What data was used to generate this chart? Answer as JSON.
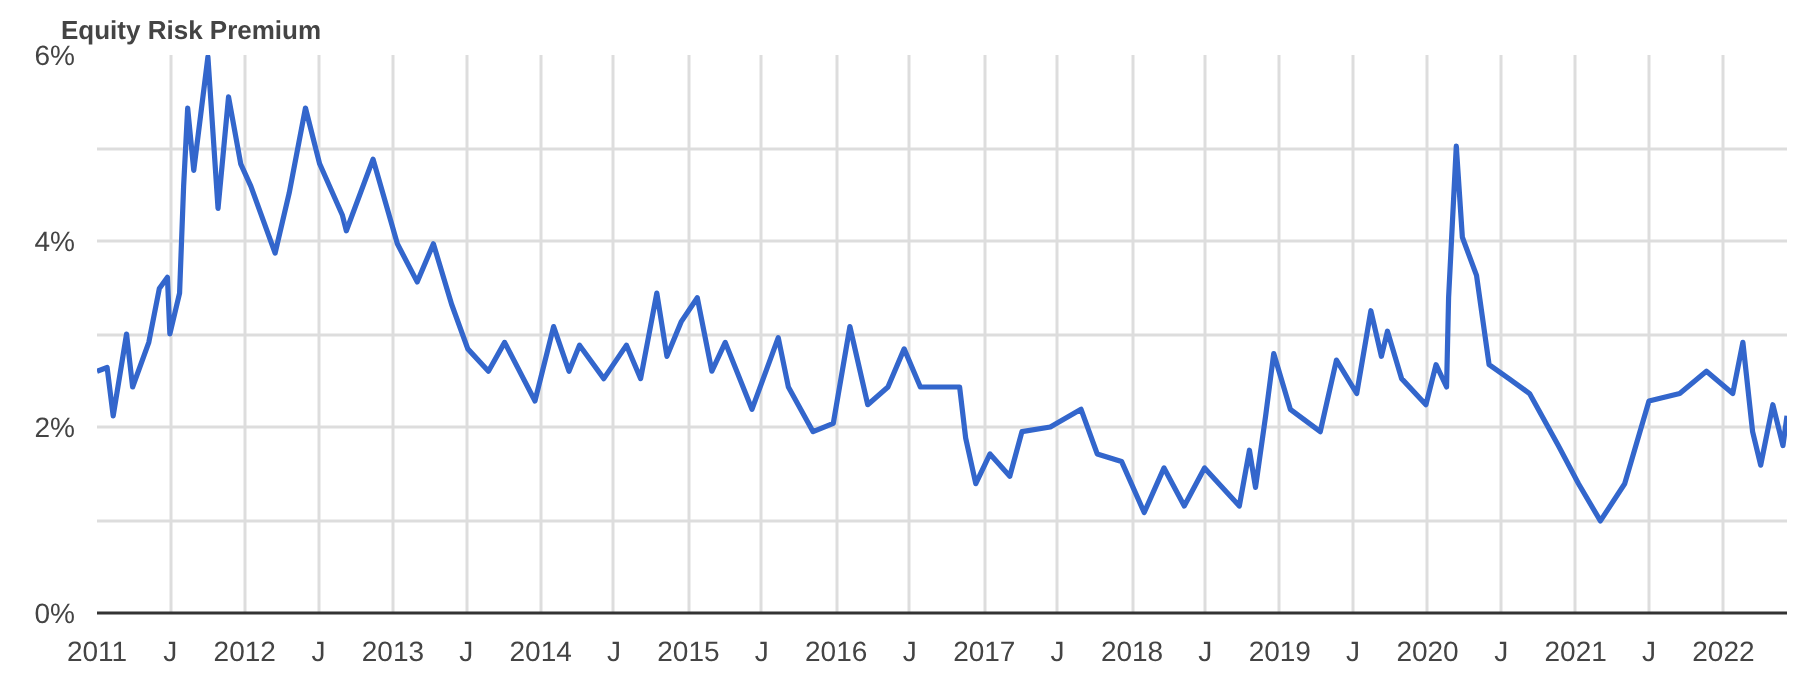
{
  "chart_data": {
    "type": "line",
    "title": "Equity Risk Premium",
    "x": [
      "2011-01-01",
      "2011-01-26",
      "2011-02-10",
      "2011-03-15",
      "2011-03-30",
      "2011-05-09",
      "2011-06-04",
      "2011-06-24",
      "2011-06-30",
      "2011-07-24",
      "2011-08-03",
      "2011-08-13",
      "2011-08-28",
      "2011-10-02",
      "2011-10-27",
      "2011-11-22",
      "2011-12-22",
      "2012-01-16",
      "2012-03-16",
      "2012-04-20",
      "2012-05-30",
      "2012-07-04",
      "2012-08-29",
      "2012-09-08",
      "2012-11-13",
      "2013-01-12",
      "2013-03-02",
      "2013-04-11",
      "2013-05-26",
      "2013-07-05",
      "2013-08-25",
      "2013-10-04",
      "2013-12-18",
      "2014-02-02",
      "2014-03-12",
      "2014-04-07",
      "2014-06-06",
      "2014-08-01",
      "2014-09-05",
      "2014-10-15",
      "2014-11-09",
      "2014-12-14",
      "2015-01-23",
      "2015-02-28",
      "2015-04-02",
      "2015-06-07",
      "2015-08-11",
      "2015-09-05",
      "2015-11-05",
      "2015-12-25",
      "2016-02-04",
      "2016-03-19",
      "2016-05-08",
      "2016-06-17",
      "2016-07-27",
      "2016-11-01",
      "2016-11-16",
      "2016-12-11",
      "2017-01-15",
      "2017-03-05",
      "2017-04-04",
      "2017-06-13",
      "2017-08-28",
      "2017-10-07",
      "2017-12-06",
      "2018-01-31",
      "2018-03-21",
      "2018-05-10",
      "2018-06-29",
      "2018-09-23",
      "2018-10-18",
      "2018-11-02",
      "2018-11-27",
      "2018-12-17",
      "2019-01-27",
      "2019-04-11",
      "2019-05-21",
      "2019-07-10",
      "2019-08-14",
      "2019-09-09",
      "2019-09-24",
      "2019-10-29",
      "2019-12-28",
      "2020-01-22",
      "2020-02-17",
      "2020-02-22",
      "2020-03-12",
      "2020-03-27",
      "2020-05-01",
      "2020-06-01",
      "2020-07-20",
      "2020-09-09",
      "2020-11-19",
      "2021-01-08",
      "2021-03-03",
      "2021-05-02",
      "2021-07-01",
      "2021-09-15",
      "2021-11-20",
      "2022-01-24",
      "2022-02-18",
      "2022-03-14",
      "2022-04-03",
      "2022-05-03",
      "2022-05-28",
      "2022-06-07"
    ],
    "series": [
      {
        "color": "#3366cc",
        "values": [
          2.6,
          2.64,
          2.12,
          3.0,
          2.43,
          2.91,
          3.49,
          3.61,
          3.0,
          3.44,
          4.59,
          5.43,
          4.76,
          5.98,
          4.35,
          5.55,
          4.83,
          4.59,
          3.87,
          4.52,
          5.43,
          4.83,
          4.28,
          4.11,
          4.88,
          3.97,
          3.56,
          3.97,
          3.32,
          2.84,
          2.6,
          2.91,
          2.28,
          3.08,
          2.6,
          2.88,
          2.52,
          2.88,
          2.52,
          3.44,
          2.76,
          3.13,
          3.39,
          2.6,
          2.91,
          2.19,
          2.96,
          2.43,
          1.95,
          2.04,
          3.08,
          2.24,
          2.43,
          2.84,
          2.43,
          2.43,
          1.88,
          1.39,
          1.71,
          1.47,
          1.95,
          2.0,
          2.19,
          1.71,
          1.63,
          1.08,
          1.56,
          1.15,
          1.56,
          1.15,
          1.75,
          1.35,
          2.12,
          2.79,
          2.19,
          1.95,
          2.72,
          2.36,
          3.25,
          2.76,
          3.03,
          2.52,
          2.24,
          2.67,
          2.43,
          3.39,
          5.02,
          4.04,
          3.63,
          2.67,
          2.52,
          2.36,
          1.8,
          1.39,
          0.99,
          1.39,
          2.28,
          2.36,
          2.6,
          2.36,
          2.91,
          1.95,
          1.59,
          2.24,
          1.8,
          2.12
        ]
      }
    ],
    "xlim": [
      "2011-01-01",
      "2022-06-07"
    ],
    "xticks": [
      {
        "value": "2011-01-01",
        "label": "2011"
      },
      {
        "value": "2011-07-01",
        "label": "J"
      },
      {
        "value": "2012-01-01",
        "label": "2012"
      },
      {
        "value": "2012-07-01",
        "label": "J"
      },
      {
        "value": "2013-01-01",
        "label": "2013"
      },
      {
        "value": "2013-07-01",
        "label": "J"
      },
      {
        "value": "2014-01-01",
        "label": "2014"
      },
      {
        "value": "2014-07-01",
        "label": "J"
      },
      {
        "value": "2015-01-01",
        "label": "2015"
      },
      {
        "value": "2015-07-01",
        "label": "J"
      },
      {
        "value": "2016-01-01",
        "label": "2016"
      },
      {
        "value": "2016-07-01",
        "label": "J"
      },
      {
        "value": "2017-01-01",
        "label": "2017"
      },
      {
        "value": "2017-07-01",
        "label": "J"
      },
      {
        "value": "2018-01-01",
        "label": "2018"
      },
      {
        "value": "2018-07-01",
        "label": "J"
      },
      {
        "value": "2019-01-01",
        "label": "2019"
      },
      {
        "value": "2019-07-01",
        "label": "J"
      },
      {
        "value": "2020-01-01",
        "label": "2020"
      },
      {
        "value": "2020-07-01",
        "label": "J"
      },
      {
        "value": "2021-01-01",
        "label": "2021"
      },
      {
        "value": "2021-07-01",
        "label": "J"
      },
      {
        "value": "2022-01-01",
        "label": "2022"
      }
    ],
    "ylim": [
      0,
      6
    ],
    "yticks": [
      {
        "value": 0,
        "label": "0%"
      },
      {
        "value": 1,
        "label": null
      },
      {
        "value": 2,
        "label": "2%"
      },
      {
        "value": 3,
        "label": null
      },
      {
        "value": 4,
        "label": "4%"
      },
      {
        "value": 5,
        "label": null
      },
      {
        "value": 6,
        "label": "6%"
      }
    ],
    "grid": true,
    "marker": "none",
    "line_style": "solid"
  }
}
